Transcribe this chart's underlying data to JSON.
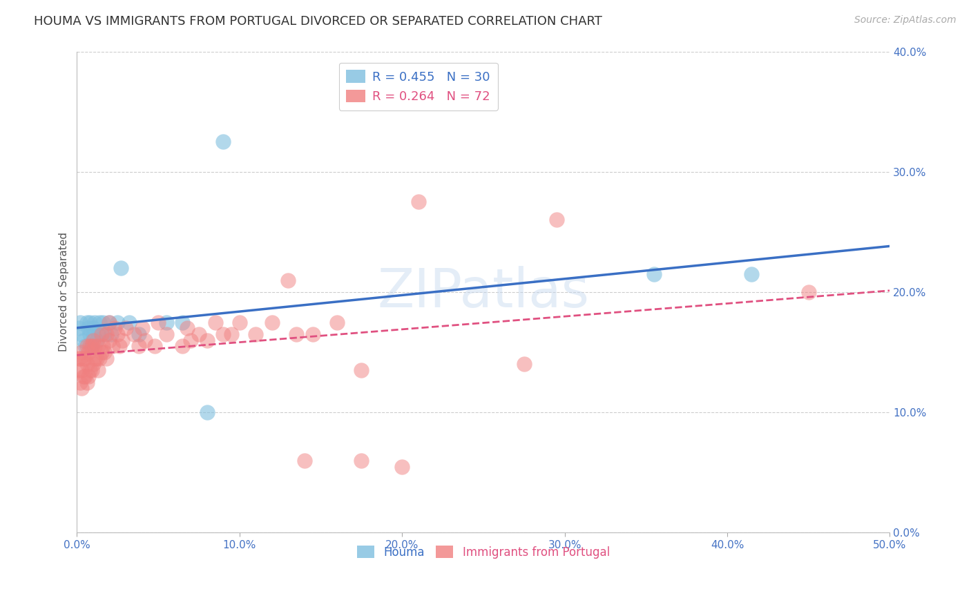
{
  "title": "HOUMA VS IMMIGRANTS FROM PORTUGAL DIVORCED OR SEPARATED CORRELATION CHART",
  "source": "Source: ZipAtlas.com",
  "ylabel": "Divorced or Separated",
  "series1_name": "Houma",
  "series2_name": "Immigrants from Portugal",
  "series1_color": "#7fbfdf",
  "series2_color": "#f08080",
  "series1_line_color": "#3a6fc4",
  "series2_line_color": "#e05080",
  "xmin": 0.0,
  "xmax": 0.5,
  "ymin": 0.0,
  "ymax": 0.4,
  "watermark": "ZIPatlas",
  "background_color": "#ffffff",
  "grid_color": "#cccccc",
  "tick_color": "#4472c4",
  "title_color": "#333333",
  "title_fontsize": 13,
  "source_fontsize": 10,
  "ylabel_fontsize": 11,
  "legend_label1": "R = 0.455   N = 30",
  "legend_label2": "R = 0.264   N = 72",
  "series1_x": [
    0.001,
    0.002,
    0.003,
    0.004,
    0.005,
    0.006,
    0.007,
    0.008,
    0.008,
    0.009,
    0.01,
    0.01,
    0.011,
    0.012,
    0.013,
    0.014,
    0.016,
    0.017,
    0.02,
    0.021,
    0.025,
    0.027,
    0.032,
    0.038,
    0.055,
    0.065,
    0.08,
    0.09,
    0.355,
    0.415
  ],
  "series1_y": [
    0.17,
    0.175,
    0.165,
    0.16,
    0.155,
    0.175,
    0.17,
    0.165,
    0.175,
    0.155,
    0.165,
    0.17,
    0.175,
    0.16,
    0.165,
    0.175,
    0.175,
    0.165,
    0.175,
    0.165,
    0.175,
    0.22,
    0.175,
    0.165,
    0.175,
    0.175,
    0.1,
    0.325,
    0.215,
    0.215
  ],
  "series2_x": [
    0.001,
    0.001,
    0.002,
    0.002,
    0.003,
    0.003,
    0.003,
    0.004,
    0.004,
    0.005,
    0.005,
    0.006,
    0.006,
    0.006,
    0.007,
    0.007,
    0.008,
    0.008,
    0.009,
    0.009,
    0.01,
    0.01,
    0.011,
    0.011,
    0.012,
    0.013,
    0.013,
    0.014,
    0.015,
    0.015,
    0.016,
    0.017,
    0.018,
    0.018,
    0.02,
    0.02,
    0.022,
    0.023,
    0.025,
    0.026,
    0.028,
    0.03,
    0.035,
    0.038,
    0.04,
    0.042,
    0.048,
    0.05,
    0.055,
    0.065,
    0.068,
    0.07,
    0.075,
    0.08,
    0.085,
    0.09,
    0.095,
    0.1,
    0.11,
    0.12,
    0.135,
    0.145,
    0.16,
    0.175,
    0.13,
    0.21,
    0.275,
    0.295,
    0.45,
    0.2,
    0.14,
    0.175
  ],
  "series2_y": [
    0.135,
    0.145,
    0.125,
    0.145,
    0.12,
    0.135,
    0.15,
    0.13,
    0.145,
    0.13,
    0.145,
    0.125,
    0.14,
    0.155,
    0.13,
    0.15,
    0.135,
    0.155,
    0.135,
    0.155,
    0.14,
    0.16,
    0.145,
    0.155,
    0.145,
    0.135,
    0.155,
    0.145,
    0.15,
    0.165,
    0.155,
    0.15,
    0.145,
    0.165,
    0.16,
    0.175,
    0.155,
    0.17,
    0.165,
    0.155,
    0.16,
    0.17,
    0.165,
    0.155,
    0.17,
    0.16,
    0.155,
    0.175,
    0.165,
    0.155,
    0.17,
    0.16,
    0.165,
    0.16,
    0.175,
    0.165,
    0.165,
    0.175,
    0.165,
    0.175,
    0.165,
    0.165,
    0.175,
    0.135,
    0.21,
    0.275,
    0.14,
    0.26,
    0.2,
    0.055,
    0.06,
    0.06
  ]
}
